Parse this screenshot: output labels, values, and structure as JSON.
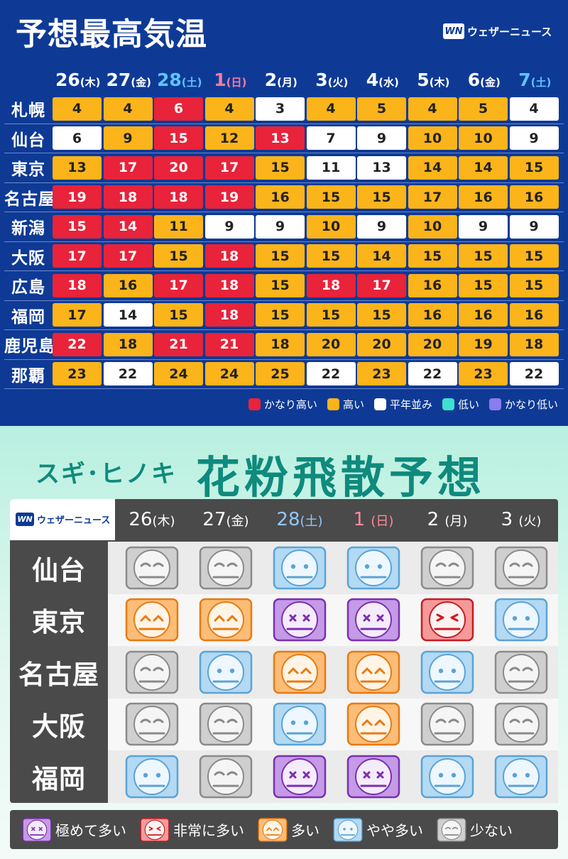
{
  "temp": {
    "title": "予想最高気温",
    "logo_text": "ウェザーニュース",
    "logo_mark": "WN",
    "dates": [
      {
        "d": "26",
        "w": "(木)",
        "type": "weekday"
      },
      {
        "d": "27",
        "w": "(金)",
        "type": "weekday"
      },
      {
        "d": "28",
        "w": "(土)",
        "type": "sat"
      },
      {
        "d": "1",
        "w": "(日)",
        "type": "sun"
      },
      {
        "d": "2",
        "w": "(月)",
        "type": "weekday"
      },
      {
        "d": "3",
        "w": "(火)",
        "type": "weekday"
      },
      {
        "d": "4",
        "w": "(水)",
        "type": "weekday"
      },
      {
        "d": "5",
        "w": "(木)",
        "type": "weekday"
      },
      {
        "d": "6",
        "w": "(金)",
        "type": "weekday"
      },
      {
        "d": "7",
        "w": "(土)",
        "type": "sat"
      }
    ],
    "rows": [
      {
        "city": "札幌",
        "values": [
          "4",
          "4",
          "6",
          "4",
          "3",
          "4",
          "5",
          "4",
          "5",
          "4"
        ],
        "levels": [
          "o",
          "o",
          "r",
          "o",
          "w",
          "o",
          "o",
          "o",
          "o",
          "w"
        ]
      },
      {
        "city": "仙台",
        "values": [
          "6",
          "9",
          "15",
          "12",
          "13",
          "7",
          "9",
          "10",
          "10",
          "9"
        ],
        "levels": [
          "w",
          "o",
          "r",
          "o",
          "r",
          "w",
          "w",
          "o",
          "o",
          "w"
        ]
      },
      {
        "city": "東京",
        "values": [
          "13",
          "17",
          "20",
          "17",
          "15",
          "11",
          "13",
          "14",
          "14",
          "15"
        ],
        "levels": [
          "o",
          "r",
          "r",
          "r",
          "o",
          "w",
          "w",
          "o",
          "o",
          "o"
        ]
      },
      {
        "city": "名古屋",
        "values": [
          "19",
          "18",
          "18",
          "19",
          "16",
          "15",
          "15",
          "17",
          "16",
          "16"
        ],
        "levels": [
          "r",
          "r",
          "r",
          "r",
          "o",
          "o",
          "o",
          "o",
          "o",
          "o"
        ]
      },
      {
        "city": "新潟",
        "values": [
          "15",
          "14",
          "11",
          "9",
          "9",
          "10",
          "9",
          "10",
          "9",
          "9"
        ],
        "levels": [
          "r",
          "r",
          "o",
          "w",
          "w",
          "o",
          "w",
          "o",
          "w",
          "w"
        ]
      },
      {
        "city": "大阪",
        "values": [
          "17",
          "17",
          "15",
          "18",
          "15",
          "15",
          "14",
          "15",
          "15",
          "15"
        ],
        "levels": [
          "r",
          "r",
          "o",
          "r",
          "o",
          "o",
          "o",
          "o",
          "o",
          "o"
        ]
      },
      {
        "city": "広島",
        "values": [
          "18",
          "16",
          "17",
          "18",
          "15",
          "18",
          "17",
          "16",
          "15",
          "15"
        ],
        "levels": [
          "r",
          "o",
          "r",
          "r",
          "o",
          "r",
          "r",
          "o",
          "o",
          "o"
        ]
      },
      {
        "city": "福岡",
        "values": [
          "17",
          "14",
          "15",
          "18",
          "15",
          "15",
          "15",
          "16",
          "16",
          "16"
        ],
        "levels": [
          "o",
          "w",
          "o",
          "r",
          "o",
          "o",
          "o",
          "o",
          "o",
          "o"
        ]
      },
      {
        "city": "鹿児島",
        "values": [
          "22",
          "18",
          "21",
          "21",
          "18",
          "20",
          "20",
          "20",
          "19",
          "18"
        ],
        "levels": [
          "r",
          "o",
          "r",
          "r",
          "o",
          "o",
          "o",
          "o",
          "o",
          "o"
        ]
      },
      {
        "city": "那覇",
        "values": [
          "23",
          "22",
          "24",
          "24",
          "25",
          "22",
          "23",
          "22",
          "23",
          "22"
        ],
        "levels": [
          "o",
          "w",
          "o",
          "o",
          "o",
          "w",
          "o",
          "w",
          "o",
          "w"
        ]
      }
    ],
    "colors": {
      "r": "#e8233a",
      "o": "#fbb41a",
      "w": "#ffffff"
    },
    "legend": [
      {
        "label": "かなり高い",
        "color": "#e8233a"
      },
      {
        "label": "高い",
        "color": "#fbb41a"
      },
      {
        "label": "平年並み",
        "color": "#ffffff"
      },
      {
        "label": "低い",
        "color": "#3fe0cf"
      },
      {
        "label": "かなり低い",
        "color": "#8b7cf0"
      }
    ]
  },
  "pollen": {
    "subtitle": "スギ･ヒノキ",
    "title": "花粉飛散予想",
    "logo_text": "ウェザーニュース",
    "logo_mark": "WN",
    "dates": [
      {
        "d": "26",
        "w": "(木)",
        "type": "weekday"
      },
      {
        "d": "27",
        "w": "(金)",
        "type": "weekday"
      },
      {
        "d": "28",
        "w": "(土)",
        "type": "sat"
      },
      {
        "d": "1 ",
        "w": "(日)",
        "type": "sun"
      },
      {
        "d": "2 ",
        "w": "(月)",
        "type": "weekday"
      },
      {
        "d": "3 ",
        "w": "(火)",
        "type": "weekday"
      }
    ],
    "rows": [
      {
        "city": "仙台",
        "levels": [
          "low",
          "low",
          "slight",
          "slight",
          "low",
          "low"
        ]
      },
      {
        "city": "東京",
        "levels": [
          "many",
          "many",
          "extreme",
          "extreme",
          "very",
          "slight"
        ]
      },
      {
        "city": "名古屋",
        "levels": [
          "low",
          "slight",
          "many",
          "many",
          "slight",
          "low"
        ]
      },
      {
        "city": "大阪",
        "levels": [
          "low",
          "low",
          "slight",
          "many",
          "low",
          "low"
        ]
      },
      {
        "city": "福岡",
        "levels": [
          "slight",
          "low",
          "extreme",
          "extreme",
          "slight",
          "slight"
        ]
      }
    ],
    "level_styles": {
      "extreme": {
        "icon": "extreme-pollen-face-icon",
        "fill": "#c59ae6",
        "edge": "#7b2fb0",
        "face": "#f5ecfb"
      },
      "very": {
        "icon": "very-high-pollen-face-icon",
        "fill": "#f59a9a",
        "edge": "#c81b22",
        "face": "#fff2f2"
      },
      "many": {
        "icon": "high-pollen-face-icon",
        "fill": "#fbbd77",
        "edge": "#e87a12",
        "face": "#fff4e6"
      },
      "slight": {
        "icon": "moderate-pollen-face-icon",
        "fill": "#b3d9f3",
        "edge": "#5aa3d6",
        "face": "#eef7fd"
      },
      "low": {
        "icon": "low-pollen-face-icon",
        "fill": "#cfcfcf",
        "edge": "#8a8a8a",
        "face": "#f5f5f5"
      }
    },
    "legend": [
      {
        "label": "極めて多い",
        "level": "extreme"
      },
      {
        "label": "非常に多い",
        "level": "very"
      },
      {
        "label": "多い",
        "level": "many"
      },
      {
        "label": "やや多い",
        "level": "slight"
      },
      {
        "label": "少ない",
        "level": "low"
      }
    ]
  }
}
